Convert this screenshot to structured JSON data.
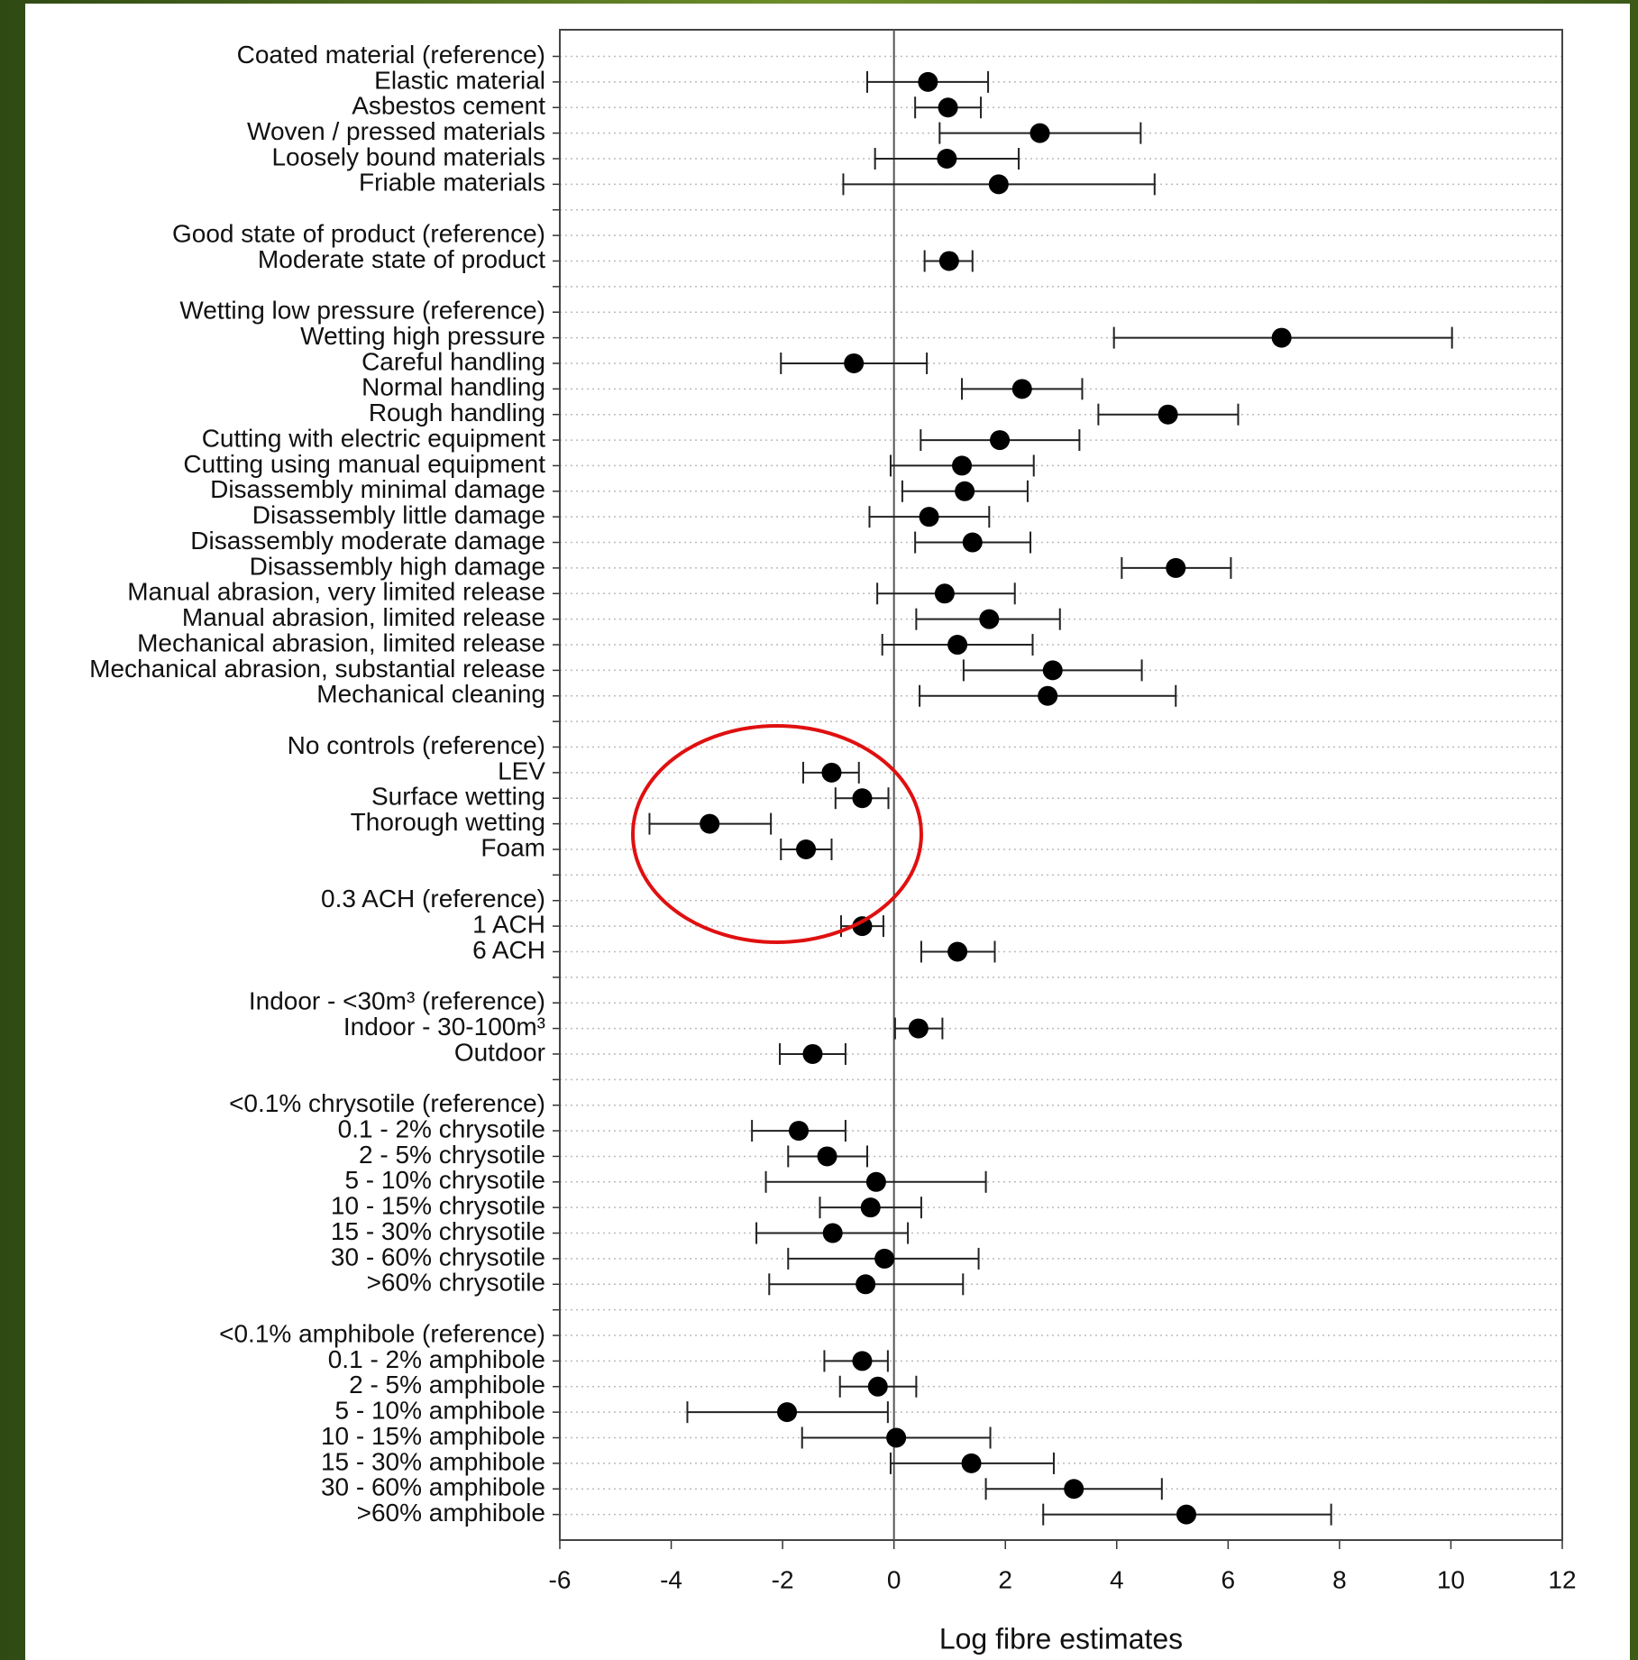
{
  "chart_data": {
    "type": "forest",
    "xlabel": "Log fibre estimates",
    "xlim": [
      -6,
      12
    ],
    "xticks": [
      -6,
      -4,
      -2,
      0,
      2,
      4,
      6,
      8,
      10,
      12
    ],
    "grid": true,
    "categories": [
      "Coated material (reference)",
      "Elastic material",
      "Asbestos cement",
      "Woven / pressed materials",
      "Loosely bound materials",
      "Friable materials",
      null,
      "Good state of product (reference)",
      "Moderate state of product",
      null,
      "Wetting low pressure (reference)",
      "Wetting high pressure",
      "Careful handling",
      "Normal handling",
      "Rough handling",
      "Cutting with electric equipment",
      "Cutting using manual equipment",
      "Disassembly minimal damage",
      "Disassembly little damage",
      "Disassembly moderate damage",
      "Disassembly high damage",
      "Manual abrasion, very limited release",
      "Manual abrasion, limited release",
      "Mechanical abrasion, limited release",
      "Mechanical abrasion, substantial release",
      "Mechanical cleaning",
      null,
      "No controls (reference)",
      "LEV",
      "Surface wetting",
      "Thorough wetting",
      "Foam",
      null,
      "0.3 ACH (reference)",
      "1 ACH",
      "6 ACH",
      null,
      "Indoor - <30m³ (reference)",
      "Indoor - 30-100m³",
      "Outdoor",
      null,
      "<0.1% chrysotile (reference)",
      "0.1 - 2% chrysotile",
      "2 - 5% chrysotile",
      "5 - 10% chrysotile",
      "10 - 15% chrysotile",
      "15 - 30% chrysotile",
      "30 - 60% chrysotile",
      ">60% chrysotile",
      null,
      "<0.1% amphibole (reference)",
      "0.1 - 2% amphibole",
      "2 - 5% amphibole",
      "5 - 10% amphibole",
      "10 - 15% amphibole",
      "15 - 30% amphibole",
      "30 - 60% amphibole",
      ">60% amphibole"
    ],
    "series": [
      {
        "color": "#000000",
        "values": [
          null,
          0.61,
          0.97,
          2.62,
          0.95,
          1.88,
          null,
          null,
          0.99,
          null,
          null,
          6.96,
          -0.72,
          2.3,
          4.92,
          1.9,
          1.22,
          1.27,
          0.63,
          1.41,
          5.06,
          0.91,
          1.71,
          1.14,
          2.85,
          2.76,
          null,
          null,
          -1.12,
          -0.57,
          -3.31,
          -1.58,
          null,
          null,
          -0.57,
          1.14,
          null,
          null,
          0.44,
          -1.46,
          null,
          null,
          -1.71,
          -1.2,
          -0.32,
          -0.42,
          -1.1,
          -0.17,
          -0.51,
          null,
          null,
          -0.57,
          -0.29,
          -1.92,
          0.04,
          1.39,
          3.23,
          5.25
        ],
        "lower": [
          null,
          -0.48,
          0.38,
          0.82,
          -0.34,
          -0.91,
          null,
          null,
          0.55,
          null,
          null,
          3.95,
          -2.03,
          1.22,
          3.67,
          0.48,
          -0.06,
          0.15,
          -0.44,
          0.38,
          4.09,
          -0.3,
          0.4,
          -0.21,
          1.25,
          0.46,
          null,
          null,
          -1.63,
          -1.05,
          -4.39,
          -2.03,
          null,
          null,
          -0.95,
          0.49,
          null,
          null,
          0.02,
          -2.05,
          null,
          null,
          -2.55,
          -1.9,
          -2.3,
          -1.33,
          -2.47,
          -1.9,
          -2.24,
          null,
          null,
          -1.25,
          -0.97,
          -3.71,
          -1.65,
          -0.06,
          1.65,
          2.68
        ],
        "upper": [
          null,
          1.69,
          1.56,
          4.43,
          2.24,
          4.68,
          null,
          null,
          1.41,
          null,
          null,
          10.02,
          0.59,
          3.38,
          6.18,
          3.33,
          2.51,
          2.4,
          1.71,
          2.45,
          6.05,
          2.17,
          2.98,
          2.49,
          4.45,
          5.06,
          null,
          null,
          -0.63,
          -0.1,
          -2.21,
          -1.12,
          null,
          null,
          -0.19,
          1.81,
          null,
          null,
          0.87,
          -0.87,
          null,
          null,
          -0.87,
          -0.48,
          1.65,
          0.49,
          0.25,
          1.52,
          1.24,
          null,
          null,
          -0.11,
          0.4,
          -0.11,
          1.73,
          2.87,
          4.81,
          7.85
        ]
      }
    ]
  }
}
